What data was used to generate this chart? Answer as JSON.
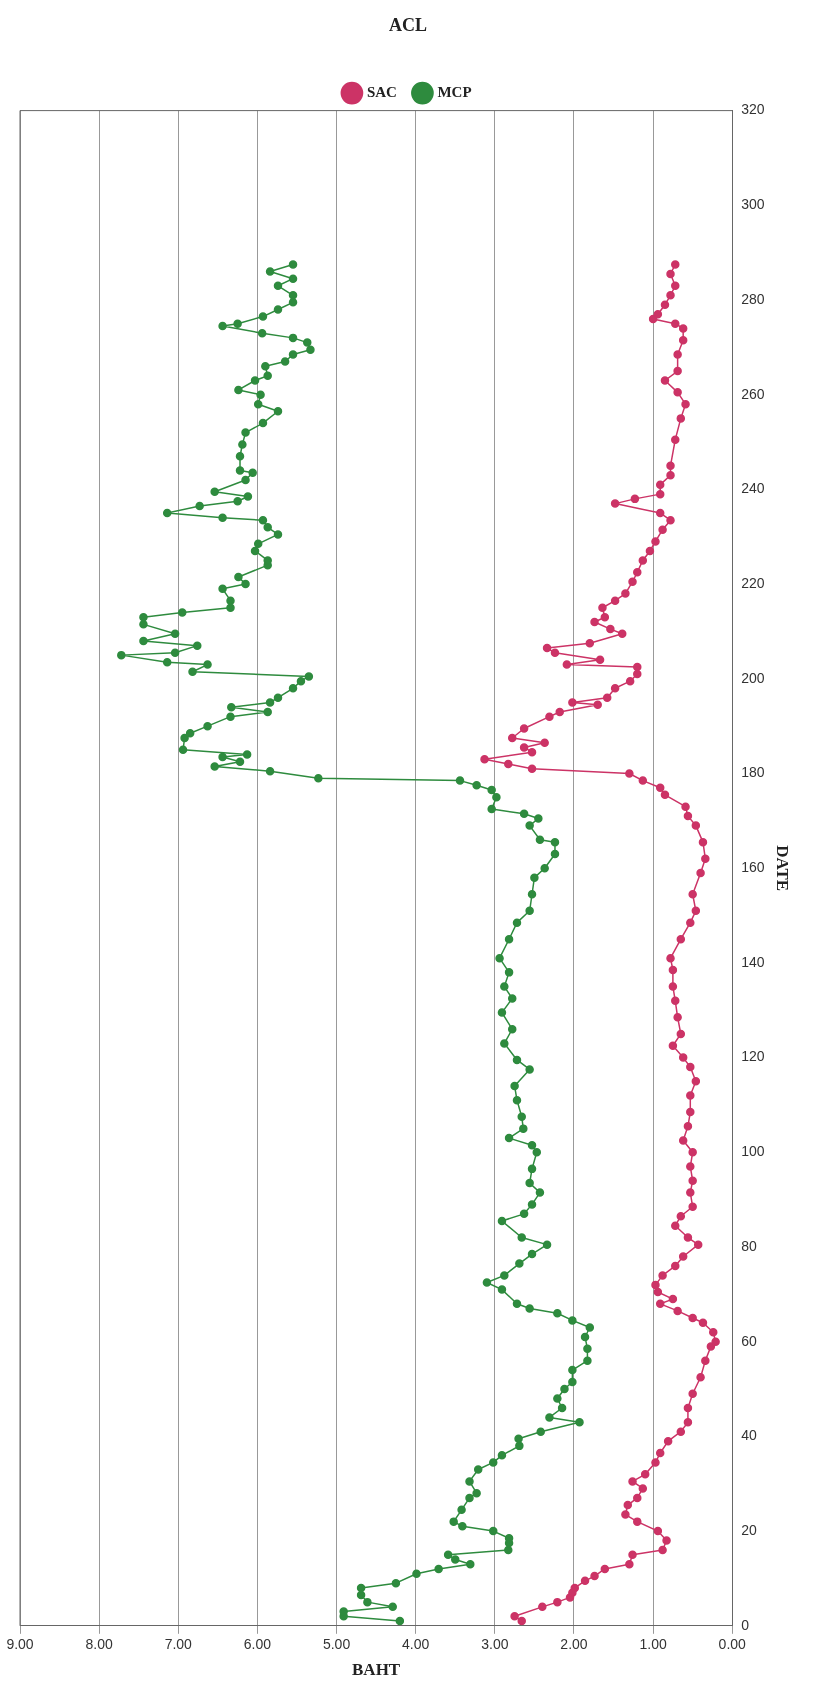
{
  "chart_data": {
    "type": "line",
    "title": "ACL",
    "xlabel": "BAHT",
    "ylabel": "DATE",
    "xlim": [
      9,
      0
    ],
    "xticks": [
      {
        "value": 9,
        "label": "9.00"
      },
      {
        "value": 8,
        "label": "8.00"
      },
      {
        "value": 7,
        "label": "7.00"
      },
      {
        "value": 6,
        "label": "6.00"
      },
      {
        "value": 5,
        "label": "5.00"
      },
      {
        "value": 4,
        "label": "4.00"
      },
      {
        "value": 3,
        "label": "3.00"
      },
      {
        "value": 2,
        "label": "2.00"
      },
      {
        "value": 1,
        "label": "1.00"
      },
      {
        "value": 0,
        "label": "0.00"
      }
    ],
    "ylim": [
      0,
      320
    ],
    "yticks": [
      0,
      20,
      40,
      60,
      80,
      100,
      120,
      140,
      160,
      180,
      200,
      220,
      240,
      260,
      280,
      300,
      320
    ],
    "grid": "x",
    "legend": "top",
    "marker": "circle",
    "line_style": "solid",
    "series": [
      {
        "name": "SAC",
        "color": "#cc3366",
        "values": [
          1,
          2,
          4,
          5,
          6,
          7,
          8,
          9.5,
          10.5,
          12,
          13,
          15,
          16,
          18,
          20,
          22,
          23.5,
          25.5,
          27,
          29,
          30.5,
          32,
          34.5,
          36.5,
          39,
          41,
          43,
          46,
          49,
          52.5,
          56,
          59,
          60,
          62,
          64,
          65,
          66.5,
          68,
          69,
          70.5,
          72,
          74,
          76,
          78,
          80.5,
          82,
          84.5,
          86.5,
          88.5,
          91.5,
          94,
          97,
          100,
          102.5,
          105.5,
          108.5,
          112,
          115,
          118,
          120,
          122.5,
          125,
          128.5,
          132,
          135,
          138.5,
          141,
          145,
          148.5,
          151,
          154.5,
          159,
          162,
          165.5,
          169,
          171,
          173,
          175.5,
          177,
          178.5,
          180,
          181,
          182,
          183,
          184.5,
          185.5,
          186.5,
          187.5,
          189.5,
          192,
          193,
          194.5,
          195,
          196,
          198,
          199.5,
          201,
          202.5,
          203,
          204,
          205.5,
          206.5,
          207.5,
          209.5,
          210.5,
          212,
          213,
          215,
          216.5,
          218,
          220.5,
          222.5,
          225,
          227,
          229,
          231.5,
          233.5,
          235,
          237,
          238,
          239,
          241,
          243,
          245,
          250.5,
          255,
          258,
          260.5,
          263,
          265,
          268.5,
          271.5,
          274,
          275,
          276,
          277,
          279,
          281,
          283,
          285.5,
          287.5
        ],
        "x": [
          2.66,
          2.75,
          2.4,
          2.21,
          2.05,
          2.02,
          1.99,
          1.86,
          1.74,
          1.61,
          1.3,
          1.26,
          0.88,
          0.83,
          0.94,
          1.2,
          1.35,
          1.32,
          1.2,
          1.13,
          1.26,
          1.1,
          0.97,
          0.91,
          0.81,
          0.65,
          0.56,
          0.56,
          0.5,
          0.4,
          0.34,
          0.27,
          0.21,
          0.24,
          0.37,
          0.5,
          0.69,
          0.91,
          0.75,
          0.94,
          0.97,
          0.88,
          0.72,
          0.62,
          0.43,
          0.56,
          0.72,
          0.65,
          0.5,
          0.53,
          0.5,
          0.53,
          0.5,
          0.62,
          0.56,
          0.53,
          0.53,
          0.46,
          0.53,
          0.62,
          0.75,
          0.65,
          0.69,
          0.72,
          0.75,
          0.75,
          0.78,
          0.65,
          0.53,
          0.46,
          0.5,
          0.4,
          0.34,
          0.37,
          0.46,
          0.56,
          0.59,
          0.85,
          0.91,
          1.13,
          1.3,
          2.53,
          2.83,
          3.13,
          2.53,
          2.63,
          2.37,
          2.78,
          2.63,
          2.31,
          2.18,
          1.7,
          2.02,
          1.58,
          1.48,
          1.29,
          1.2,
          1.2,
          2.09,
          1.67,
          2.24,
          2.34,
          1.8,
          1.39,
          1.54,
          1.74,
          1.61,
          1.64,
          1.48,
          1.35,
          1.26,
          1.2,
          1.13,
          1.04,
          0.97,
          0.88,
          0.78,
          0.91,
          1.48,
          1.23,
          0.91,
          0.91,
          0.78,
          0.78,
          0.72,
          0.65,
          0.59,
          0.69,
          0.85,
          0.69,
          0.69,
          0.62,
          0.62,
          0.72,
          1.0,
          0.94,
          0.85,
          0.78,
          0.72,
          0.78,
          0.72
        ]
      },
      {
        "name": "MCP",
        "color": "#2e8b3e",
        "values": [
          1,
          2,
          3,
          4,
          5,
          6.5,
          8,
          9,
          11,
          12,
          13,
          14,
          15,
          16,
          17.5,
          18.5,
          20,
          21,
          22,
          24.5,
          27,
          28,
          30.5,
          33,
          34.5,
          36,
          38,
          39.5,
          41,
          43,
          44,
          46,
          48,
          50,
          51.5,
          54,
          56,
          58.5,
          61,
          63,
          64.5,
          66,
          67,
          68,
          71,
          72.5,
          74,
          76.5,
          78.5,
          80.5,
          82,
          85.5,
          87,
          89,
          91.5,
          93.5,
          96.5,
          100,
          101.5,
          103,
          105,
          107.5,
          111,
          114,
          117.5,
          119.5,
          123,
          126,
          129.5,
          132.5,
          135,
          138,
          141,
          145,
          148.5,
          151,
          154.5,
          158,
          160,
          163,
          165.5,
          166,
          169,
          170.5,
          171.5,
          172.5,
          175,
          176.5,
          177.5,
          178.5,
          179,
          180.5,
          181.5,
          182.5,
          183.5,
          184,
          185,
          187.5,
          188.5,
          190,
          192,
          193,
          194,
          195,
          196,
          198,
          199.5,
          200.5,
          201.5,
          203,
          203.5,
          205,
          205.5,
          207,
          208,
          209.5,
          211.5,
          213,
          214,
          215,
          216.5,
          219,
          220,
          221.5,
          224,
          225,
          227,
          228.5,
          230.5,
          232,
          233.5,
          234,
          235,
          236.5,
          237.5,
          238.5,
          239.5,
          242,
          243.5,
          244,
          247,
          249.5,
          252,
          254,
          256.5,
          258,
          260,
          261,
          263,
          264,
          266,
          267,
          268.5,
          269.5,
          271,
          272,
          273,
          274.5,
          275,
          276.5,
          278,
          279.5,
          281,
          283,
          284.5,
          286,
          287.5
        ],
        "x": [
          4.2,
          4.91,
          4.91,
          4.29,
          4.61,
          4.69,
          4.69,
          4.25,
          3.99,
          3.71,
          3.31,
          3.5,
          3.59,
          2.83,
          2.82,
          2.82,
          3.02,
          3.41,
          3.52,
          3.42,
          3.32,
          3.23,
          3.32,
          3.21,
          3.02,
          2.91,
          2.69,
          2.7,
          2.42,
          1.93,
          2.31,
          2.15,
          2.21,
          2.12,
          2.02,
          2.02,
          1.83,
          1.83,
          1.86,
          1.8,
          2.02,
          2.21,
          2.56,
          2.72,
          2.91,
          3.1,
          2.88,
          2.69,
          2.53,
          2.34,
          2.66,
          2.91,
          2.63,
          2.53,
          2.43,
          2.56,
          2.53,
          2.47,
          2.53,
          2.82,
          2.64,
          2.66,
          2.72,
          2.75,
          2.56,
          2.72,
          2.88,
          2.78,
          2.91,
          2.78,
          2.88,
          2.82,
          2.94,
          2.82,
          2.72,
          2.56,
          2.53,
          2.5,
          2.37,
          2.24,
          2.24,
          2.43,
          2.56,
          2.45,
          2.63,
          3.04,
          2.98,
          3.04,
          3.23,
          3.44,
          5.23,
          5.84,
          6.54,
          6.22,
          6.44,
          6.13,
          6.94,
          6.92,
          6.85,
          6.63,
          6.34,
          5.87,
          6.33,
          5.84,
          5.74,
          5.55,
          5.45,
          5.35,
          6.82,
          6.63,
          7.14,
          7.72,
          7.04,
          6.76,
          7.44,
          7.04,
          7.44,
          7.44,
          6.95,
          6.34,
          6.34,
          6.44,
          6.15,
          6.24,
          5.87,
          5.87,
          6.03,
          5.99,
          5.74,
          5.87,
          5.93,
          6.44,
          7.14,
          6.73,
          6.25,
          6.12,
          6.54,
          6.15,
          6.06,
          6.22,
          6.22,
          6.19,
          6.15,
          5.93,
          5.74,
          5.99,
          5.96,
          6.24,
          6.03,
          5.87,
          5.9,
          5.65,
          5.55,
          5.33,
          5.37,
          5.55,
          5.94,
          6.44,
          6.25,
          5.93,
          5.74,
          5.55,
          5.55,
          5.74,
          5.55,
          5.84,
          5.55
        ]
      }
    ]
  }
}
